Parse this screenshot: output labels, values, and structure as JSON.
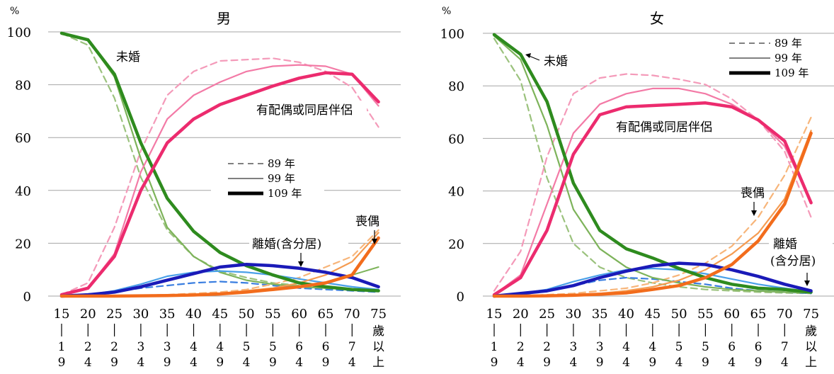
{
  "chart_data": [
    {
      "type": "line",
      "title": "男",
      "ylabel": "%",
      "ylim": [
        0,
        100
      ],
      "yticks": [
        0,
        20,
        40,
        60,
        80,
        100
      ],
      "grid": "horizontal",
      "categories": [
        "15–19歲",
        "20–24歲",
        "25–29歲",
        "30–34歲",
        "35–39歲",
        "40–44歲",
        "45–49歲",
        "50–54歲",
        "55–59歲",
        "60–64歲",
        "65–69歲",
        "70–74歲",
        "75歲以上"
      ],
      "category_top": [
        "15",
        "20",
        "25",
        "30",
        "35",
        "40",
        "45",
        "50",
        "55",
        "60",
        "65",
        "70",
        "75"
      ],
      "category_bottom": [
        "|19歲",
        "|24歲",
        "|29歲",
        "|34歲",
        "|39歲",
        "|44歲",
        "|49歲",
        "|54歲",
        "|59歲",
        "|64歲",
        "|69歲",
        "|74歲",
        "歲以上"
      ],
      "legend": [
        {
          "label": "89 年",
          "style": "dashed"
        },
        {
          "label": "99 年",
          "style": "thin"
        },
        {
          "label": "109 年",
          "style": "thick"
        }
      ],
      "annotations": [
        "未婚",
        "有配偶或同居伴侶",
        "離婚(含分居)",
        "喪偶"
      ],
      "series": [
        {
          "group": "未婚",
          "year": "89",
          "values": [
            99.5,
            95,
            75,
            45,
            25,
            15,
            9.5,
            7,
            5,
            4,
            3,
            2.5,
            2
          ]
        },
        {
          "group": "未婚",
          "year": "99",
          "values": [
            99.5,
            97,
            83,
            52,
            26,
            15,
            9,
            6,
            4.5,
            3.5,
            3,
            2.5,
            2
          ]
        },
        {
          "group": "未婚",
          "year": "109",
          "values": [
            99.5,
            97,
            84,
            58,
            37,
            24.5,
            16.5,
            11.5,
            8,
            5,
            3.5,
            2.5,
            2
          ]
        },
        {
          "group": "有配偶或同居伴侶",
          "year": "89",
          "values": [
            0.5,
            5,
            26,
            55,
            76,
            85,
            89,
            89.5,
            90,
            88.5,
            85,
            79,
            64
          ]
        },
        {
          "group": "有配偶或同居伴侶",
          "year": "99",
          "values": [
            0.5,
            3,
            16,
            47,
            67,
            76,
            81,
            85,
            87,
            87.5,
            87,
            84,
            72
          ]
        },
        {
          "group": "有配偶或同居伴侶",
          "year": "109",
          "values": [
            0.5,
            3,
            15,
            40,
            58,
            67,
            72.5,
            76,
            79.5,
            82.5,
            84.5,
            84,
            73.5
          ]
        },
        {
          "group": "離婚(含分居)",
          "year": "89",
          "values": [
            0,
            0.5,
            1.5,
            3,
            4,
            5,
            5.5,
            5,
            4,
            3,
            2.5,
            2,
            1.5
          ]
        },
        {
          "group": "離婚(含分居)",
          "year": "99",
          "values": [
            0,
            0.5,
            2,
            4.5,
            7.5,
            9,
            9.5,
            9,
            8,
            6.5,
            5,
            3.5,
            2.5
          ]
        },
        {
          "group": "離婚(含分居)",
          "year": "109",
          "values": [
            0,
            0.5,
            1.5,
            3.5,
            6,
            8.5,
            11,
            12,
            11.5,
            10.5,
            9,
            7,
            3.5
          ]
        },
        {
          "group": "喪偶",
          "year": "89",
          "values": [
            0,
            0,
            0,
            0.3,
            0.5,
            1,
            1.5,
            2.5,
            4.5,
            7,
            11,
            15,
            25
          ]
        },
        {
          "group": "喪偶",
          "year": "99",
          "values": [
            0,
            0,
            0,
            0.2,
            0.3,
            0.6,
            1,
            2,
            3,
            5,
            8,
            13,
            24
          ]
        },
        {
          "group": "喪偶",
          "year": "109",
          "values": [
            0,
            0,
            0,
            0.1,
            0.2,
            0.4,
            0.8,
            1.5,
            2.5,
            3.5,
            5,
            8,
            22
          ]
        },
        {
          "group": "喪偶",
          "year": "extra",
          "values": [
            null,
            null,
            null,
            null,
            null,
            null,
            null,
            null,
            null,
            null,
            null,
            8,
            11
          ]
        }
      ]
    },
    {
      "type": "line",
      "title": "女",
      "ylabel": "%",
      "ylim": [
        0,
        100
      ],
      "yticks": [
        0,
        20,
        40,
        60,
        80,
        100
      ],
      "grid": "horizontal",
      "categories": [
        "15–19歲",
        "20–24歲",
        "25–29歲",
        "30–34歲",
        "35–39歲",
        "40–44歲",
        "45–49歲",
        "50–54歲",
        "55–59歲",
        "60–64歲",
        "65–69歲",
        "70–74歲",
        "75歲以上"
      ],
      "category_top": [
        "15",
        "20",
        "25",
        "30",
        "35",
        "40",
        "45",
        "50",
        "55",
        "60",
        "65",
        "70",
        "75"
      ],
      "category_bottom": [
        "|19歲",
        "|24歲",
        "|29歲",
        "|34歲",
        "|39歲",
        "|44歲",
        "|49歲",
        "|54歲",
        "|59歲",
        "|64歲",
        "|69歲",
        "|74歲",
        "歲以上"
      ],
      "legend": [
        {
          "label": "89 年",
          "style": "dashed"
        },
        {
          "label": "99 年",
          "style": "thin"
        },
        {
          "label": "109 年",
          "style": "thick"
        }
      ],
      "annotations": [
        "未婚",
        "有配偶或同居伴侶",
        "喪偶",
        "離婚",
        "(含分居)"
      ],
      "series": [
        {
          "group": "未婚",
          "year": "89",
          "values": [
            98,
            82,
            45,
            20,
            11,
            7,
            5,
            3.5,
            2.5,
            2,
            1.5,
            1.2,
            1
          ]
        },
        {
          "group": "未婚",
          "year": "99",
          "values": [
            99,
            90,
            65,
            33,
            18,
            11,
            7,
            5,
            3.5,
            2.5,
            2,
            1.5,
            1.2
          ]
        },
        {
          "group": "未婚",
          "year": "109",
          "values": [
            99.5,
            92,
            74,
            43,
            25,
            18,
            14.5,
            10.5,
            7,
            4.5,
            3,
            2.5,
            1.5
          ]
        },
        {
          "group": "有配偶或同居伴侶",
          "year": "89",
          "values": [
            2,
            17,
            53,
            77,
            83,
            84.5,
            84,
            82.5,
            80.5,
            75,
            67,
            55,
            30
          ]
        },
        {
          "group": "有配偶或同居伴侶",
          "year": "99",
          "values": [
            0.5,
            8,
            35,
            62,
            73,
            77,
            79,
            79,
            77,
            73,
            67,
            57,
            36
          ]
        },
        {
          "group": "有配偶或同居伴侶",
          "year": "109",
          "values": [
            0.5,
            7,
            25,
            54,
            69,
            72,
            72.5,
            73,
            73.5,
            72,
            67,
            59,
            35.5
          ]
        },
        {
          "group": "離婚(含分居)",
          "year": "89",
          "values": [
            0,
            0.5,
            2,
            4,
            6,
            7,
            6.5,
            5.5,
            4.5,
            3,
            2,
            1.5,
            1
          ]
        },
        {
          "group": "離婚(含分居)",
          "year": "99",
          "values": [
            0,
            1,
            2.5,
            5.5,
            8,
            10,
            10.5,
            10,
            8.5,
            6.5,
            4.5,
            3,
            1.5
          ]
        },
        {
          "group": "離婚(含分居)",
          "year": "109",
          "values": [
            0,
            1,
            2,
            4,
            7,
            9.5,
            11.5,
            12.5,
            12,
            10,
            7.5,
            4.5,
            2
          ]
        },
        {
          "group": "喪偶",
          "year": "89",
          "values": [
            0,
            0,
            0.5,
            1,
            2,
            3,
            5,
            8,
            12.5,
            19,
            30,
            46,
            68
          ]
        },
        {
          "group": "喪偶",
          "year": "99",
          "values": [
            0,
            0,
            0.2,
            0.5,
            1,
            2,
            3.5,
            6,
            10,
            16,
            24,
            37,
            63
          ]
        },
        {
          "group": "喪偶",
          "year": "109",
          "values": [
            0,
            0,
            0.1,
            0.3,
            0.7,
            1.2,
            2.5,
            4,
            7,
            12,
            21,
            35,
            62
          ]
        }
      ]
    }
  ],
  "colors": {
    "未婚": [
      "#9bc27d",
      "#7db35a",
      "#2e8b1e"
    ],
    "有配偶或同居伴侶": [
      "#f49ab9",
      "#f37aa6",
      "#ec2b6e"
    ],
    "離婚(含分居)": [
      "#3a7ee0",
      "#4aa0e8",
      "#1a1ab8"
    ],
    "喪偶": [
      "#f7b57a",
      "#f59c52",
      "#f26c1c"
    ],
    "extra": "#7db35a",
    "grid": "#a6a6a6",
    "legend_line": "#808080"
  }
}
